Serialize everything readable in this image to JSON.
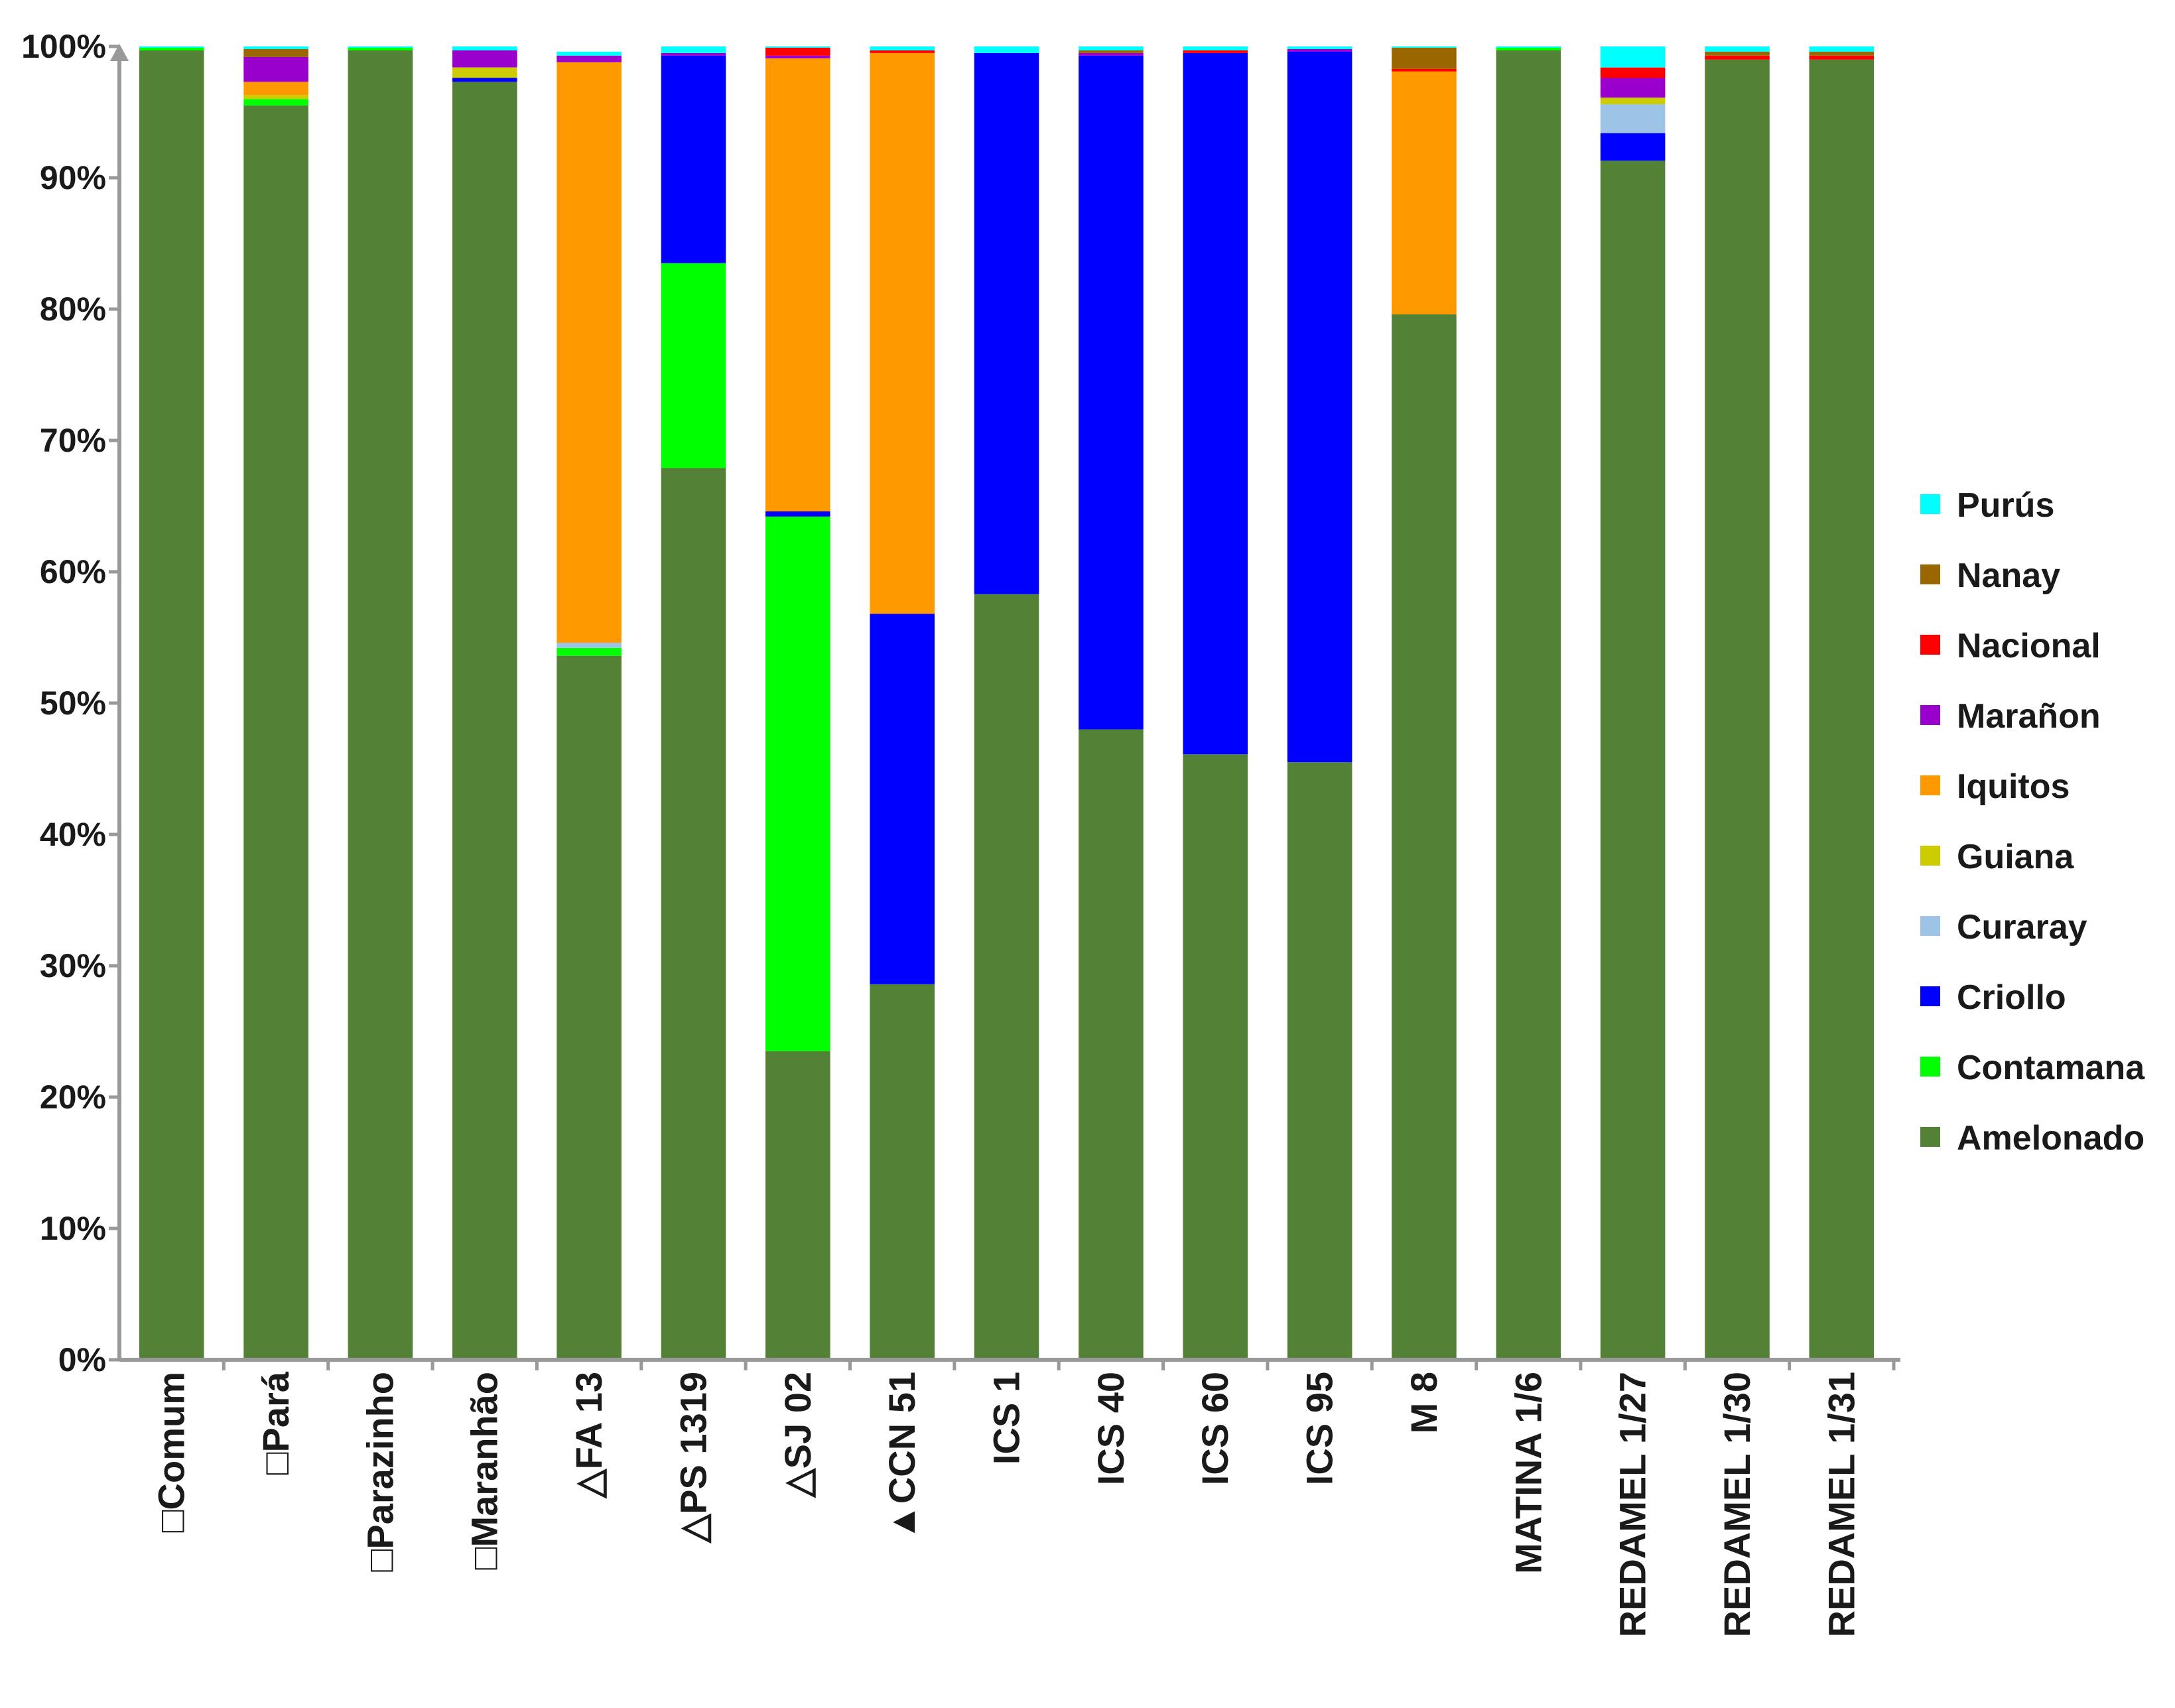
{
  "chart_data": {
    "type": "bar",
    "stacked": true,
    "normalized": true,
    "title": "",
    "xlabel": "",
    "ylabel": "",
    "ylim": [
      0,
      100
    ],
    "yticks": [
      "0%",
      "10%",
      "20%",
      "30%",
      "40%",
      "50%",
      "60%",
      "70%",
      "80%",
      "90%",
      "100%"
    ],
    "legend_position": "right",
    "categories": [
      "□Comum",
      "□Pará",
      "□Parazinho",
      "□Maranhão",
      "△FA 13",
      "△PS 1319",
      "△SJ 02",
      "▲CCN 51",
      "ICS 1",
      "ICS 40",
      "ICS 60",
      "ICS 95",
      "M 8",
      "MATINA 1/6",
      "REDAMEL 1/27",
      "REDAMEL 1/30",
      "REDAMEL 1/31"
    ],
    "series": [
      {
        "name": "Amelonado",
        "color": "#538135",
        "values": [
          99.7,
          95.5,
          99.7,
          97.3,
          53.6,
          67.9,
          23.5,
          28.6,
          58.3,
          48.0,
          46.1,
          45.5,
          79.6,
          99.7,
          91.3,
          99.0,
          99.0
        ]
      },
      {
        "name": "Contamana",
        "color": "#00ff00",
        "values": [
          0.2,
          0.5,
          0.2,
          0.0,
          0.6,
          15.6,
          40.7,
          0.0,
          0.0,
          0.0,
          0.0,
          0.0,
          0.0,
          0.2,
          0.0,
          0.0,
          0.0
        ]
      },
      {
        "name": "Criollo",
        "color": "#0000ff",
        "values": [
          0.0,
          0.0,
          0.0,
          0.3,
          0.0,
          15.8,
          0.4,
          28.2,
          41.2,
          51.3,
          53.4,
          54.1,
          0.0,
          0.0,
          2.1,
          0.0,
          0.0
        ]
      },
      {
        "name": "Curaray",
        "color": "#9dc3e6",
        "values": [
          0.0,
          0.0,
          0.0,
          0.0,
          0.4,
          0.0,
          0.0,
          0.0,
          0.0,
          0.0,
          0.0,
          0.0,
          0.0,
          0.0,
          2.2,
          0.0,
          0.0
        ]
      },
      {
        "name": "Guiana",
        "color": "#cccc00",
        "values": [
          0.0,
          0.3,
          0.0,
          0.8,
          0.0,
          0.0,
          0.0,
          0.0,
          0.0,
          0.0,
          0.0,
          0.0,
          0.0,
          0.0,
          0.5,
          0.0,
          0.0
        ]
      },
      {
        "name": "Iquitos",
        "color": "#ff9900",
        "values": [
          0.0,
          1.0,
          0.0,
          0.0,
          44.2,
          0.0,
          34.5,
          42.7,
          0.0,
          0.0,
          0.0,
          0.0,
          18.5,
          0.0,
          0.0,
          0.0,
          0.0
        ]
      },
      {
        "name": "Marañon",
        "color": "#9900cc",
        "values": [
          0.0,
          1.9,
          0.0,
          1.3,
          0.5,
          0.2,
          0.2,
          0.0,
          0.0,
          0.2,
          0.0,
          0.2,
          0.0,
          0.0,
          1.5,
          0.0,
          0.0
        ]
      },
      {
        "name": "Nacional",
        "color": "#ff0000",
        "values": [
          0.0,
          0.0,
          0.0,
          0.0,
          0.0,
          0.0,
          0.6,
          0.2,
          0.0,
          0.0,
          0.2,
          0.0,
          0.2,
          0.0,
          0.8,
          0.3,
          0.3
        ]
      },
      {
        "name": "Nanay",
        "color": "#996600",
        "values": [
          0.0,
          0.6,
          0.0,
          0.0,
          0.0,
          0.0,
          0.0,
          0.0,
          0.0,
          0.2,
          0.0,
          0.0,
          1.6,
          0.0,
          0.0,
          0.3,
          0.3
        ]
      },
      {
        "name": "Purús",
        "color": "#00ffff",
        "values": [
          0.1,
          0.2,
          0.1,
          0.3,
          0.3,
          0.5,
          0.1,
          0.3,
          0.5,
          0.3,
          0.3,
          0.2,
          0.1,
          0.1,
          1.6,
          0.4,
          0.4
        ]
      }
    ],
    "axis_color": "#999999"
  }
}
